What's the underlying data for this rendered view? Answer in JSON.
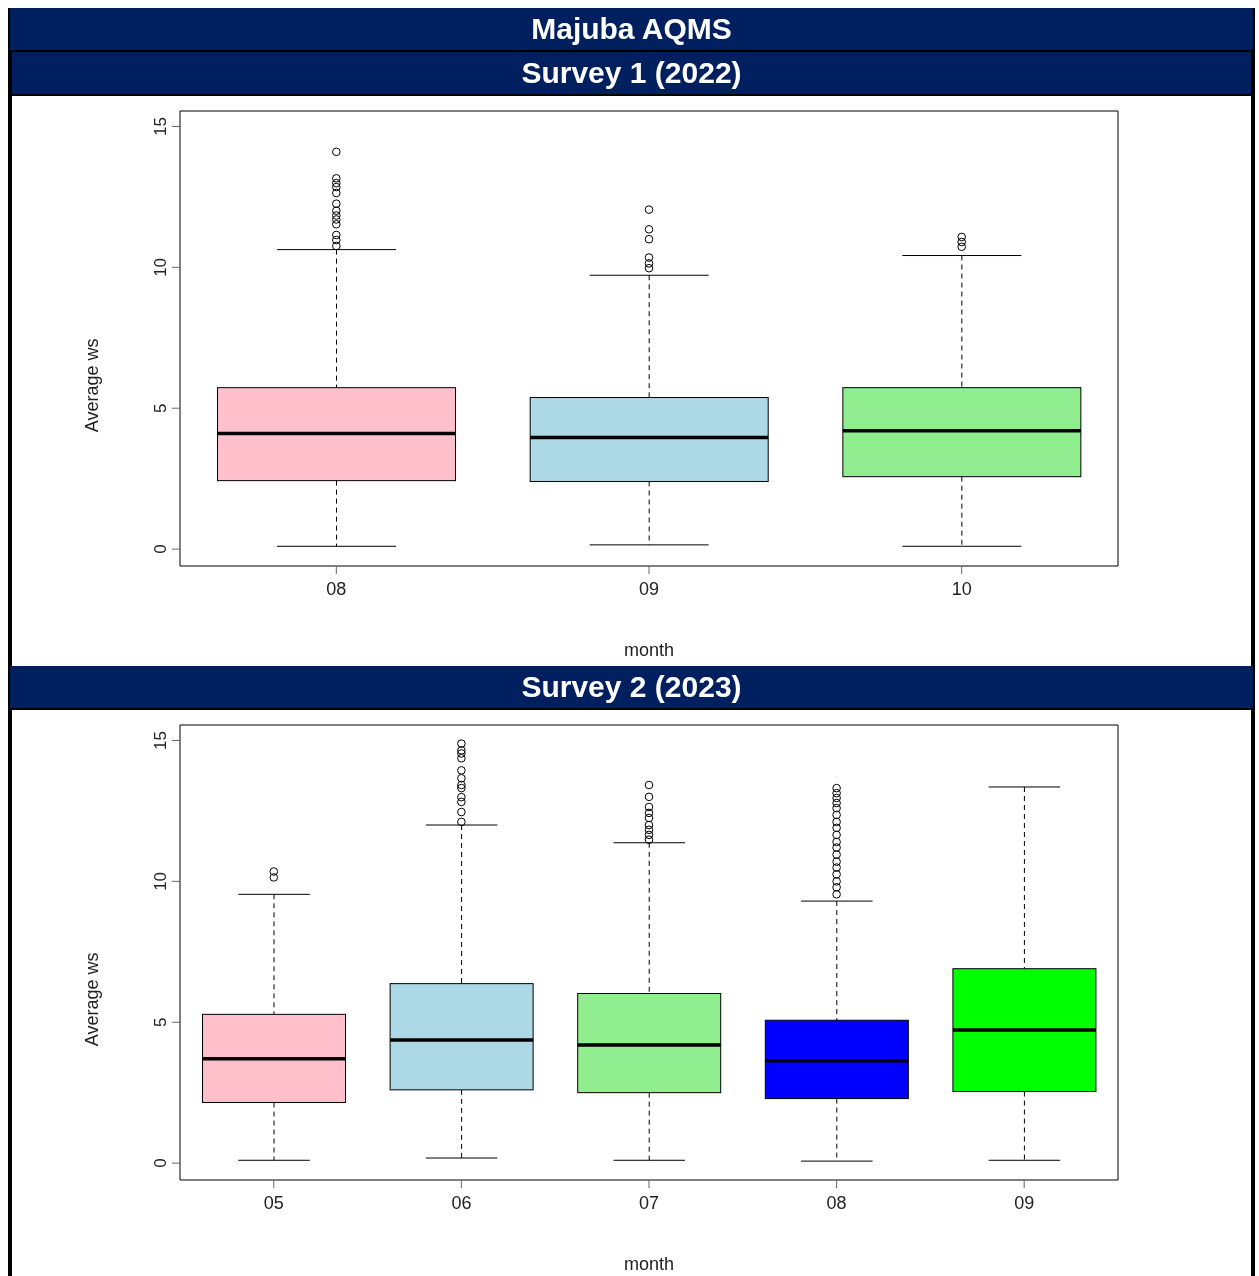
{
  "chart_data": [
    {
      "type": "box",
      "title": "Majuba AQMS",
      "subtitle": "Survey 1 (2022)",
      "xlabel": "month",
      "ylabel": "Average ws",
      "categories": [
        "08",
        "09",
        "10"
      ],
      "colors": [
        "#ffc0cb",
        "#add8e6",
        "#90ee90"
      ],
      "ylim": [
        -0.6,
        15.55
      ],
      "yticks": [
        0,
        5,
        10,
        15
      ],
      "grid": false,
      "legend": false,
      "boxes": [
        {
          "low": 0.1,
          "q1": 2.43,
          "median": 4.1,
          "q3": 5.73,
          "high": 10.63,
          "outliers": [
            10.76,
            10.97,
            11.15,
            11.53,
            11.7,
            11.84,
            12.01,
            12.26,
            12.64,
            12.85,
            12.99,
            13.16,
            14.1
          ]
        },
        {
          "low": 0.15,
          "q1": 2.4,
          "median": 3.96,
          "q3": 5.38,
          "high": 9.72,
          "outliers": [
            9.97,
            10.14,
            10.35,
            11.0,
            11.35,
            12.05
          ]
        },
        {
          "low": 0.1,
          "q1": 2.57,
          "median": 4.2,
          "q3": 5.73,
          "high": 10.42,
          "outliers": [
            10.73,
            10.9,
            11.08
          ]
        }
      ]
    },
    {
      "type": "box",
      "title": "Survey 2 (2023)",
      "xlabel": "month",
      "ylabel": "Average ws",
      "categories": [
        "05",
        "06",
        "07",
        "08",
        "09"
      ],
      "colors": [
        "#ffc0cb",
        "#add8e6",
        "#90ee90",
        "#0000ff",
        "#00ff00"
      ],
      "ylim": [
        -0.6,
        15.55
      ],
      "yticks": [
        0,
        5,
        10,
        15
      ],
      "grid": false,
      "legend": false,
      "boxes": [
        {
          "low": 0.1,
          "q1": 2.15,
          "median": 3.7,
          "q3": 5.28,
          "high": 9.54,
          "outliers": [
            10.14,
            10.35
          ]
        },
        {
          "low": 0.18,
          "q1": 2.6,
          "median": 4.37,
          "q3": 6.37,
          "high": 12.0,
          "outliers": [
            12.11,
            12.46,
            12.82,
            12.99,
            13.31,
            13.42,
            13.66,
            13.94,
            14.37,
            14.54,
            14.65,
            14.89
          ]
        },
        {
          "low": 0.1,
          "q1": 2.5,
          "median": 4.19,
          "q3": 6.02,
          "high": 11.37,
          "outliers": [
            11.48,
            11.65,
            11.83,
            12.0,
            12.25,
            12.43,
            12.64,
            13.0,
            13.42
          ]
        },
        {
          "low": 0.07,
          "q1": 2.29,
          "median": 3.63,
          "q3": 5.07,
          "high": 9.3,
          "outliers": [
            9.54,
            9.79,
            10.0,
            10.25,
            10.49,
            10.7,
            10.95,
            11.2,
            11.4,
            11.65,
            11.9,
            12.11,
            12.36,
            12.6,
            12.78,
            12.96,
            13.13,
            13.31
          ]
        },
        {
          "low": 0.1,
          "q1": 2.54,
          "median": 4.72,
          "q3": 6.9,
          "high": 13.35
        }
      ]
    }
  ]
}
